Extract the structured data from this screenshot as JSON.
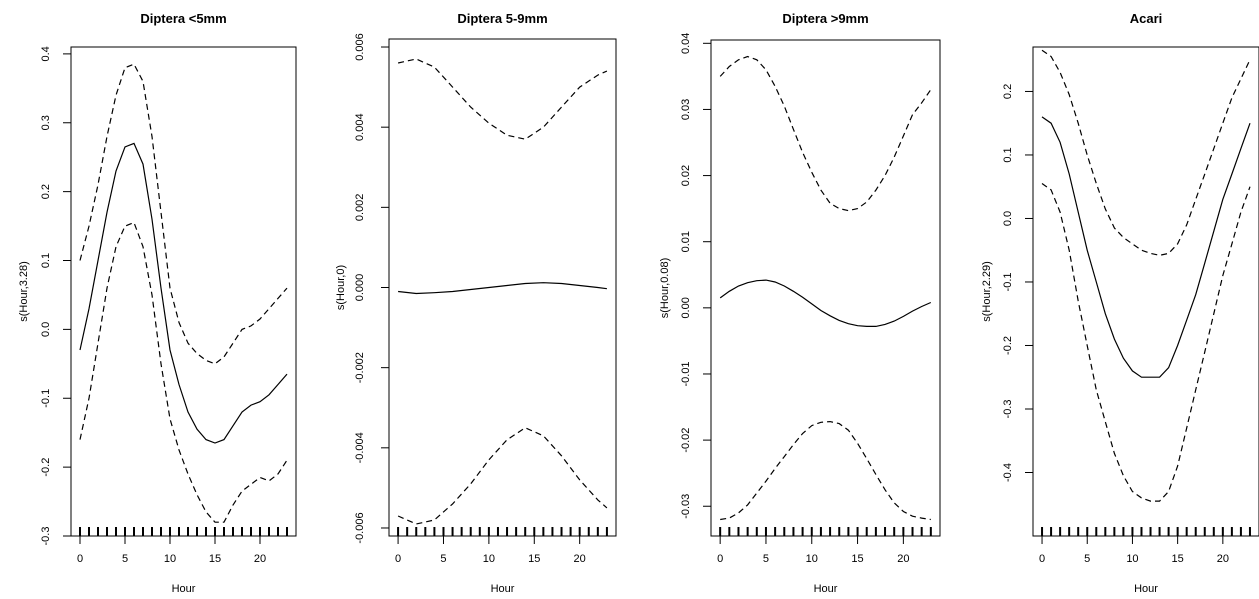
{
  "chart_data": [
    {
      "type": "line",
      "title": "Diptera <5mm",
      "xlabel": "Hour",
      "ylabel": "s(Hour,3.28)",
      "xlim": [
        -1,
        24
      ],
      "ylim": [
        -0.3,
        0.41
      ],
      "xticks": [
        0,
        5,
        10,
        15,
        20
      ],
      "yticks": [
        -0.3,
        -0.2,
        -0.1,
        0.0,
        0.1,
        0.2,
        0.3,
        0.4
      ],
      "ytick_labels": [
        "-0.3",
        "-0.2",
        "-0.1",
        "0.0",
        "0.1",
        "0.2",
        "0.3",
        "0.4"
      ],
      "rug": [
        0,
        1,
        2,
        3,
        4,
        5,
        6,
        7,
        8,
        9,
        10,
        11,
        12,
        13,
        14,
        15,
        16,
        17,
        18,
        19,
        20,
        21,
        22,
        23
      ],
      "x": [
        0,
        1,
        2,
        3,
        4,
        5,
        6,
        7,
        8,
        9,
        10,
        11,
        12,
        13,
        14,
        15,
        16,
        17,
        18,
        19,
        20,
        21,
        22,
        23
      ],
      "series": [
        {
          "style": "solid",
          "values": [
            -0.03,
            0.03,
            0.1,
            0.17,
            0.23,
            0.265,
            0.27,
            0.24,
            0.16,
            0.06,
            -0.03,
            -0.08,
            -0.12,
            -0.145,
            -0.16,
            -0.165,
            -0.16,
            -0.14,
            -0.12,
            -0.11,
            -0.105,
            -0.095,
            -0.08,
            -0.065
          ]
        },
        {
          "style": "dashed",
          "values": [
            0.1,
            0.15,
            0.21,
            0.28,
            0.34,
            0.38,
            0.385,
            0.36,
            0.28,
            0.17,
            0.06,
            0.01,
            -0.02,
            -0.035,
            -0.045,
            -0.05,
            -0.04,
            -0.02,
            0.0,
            0.005,
            0.015,
            0.03,
            0.045,
            0.06
          ]
        },
        {
          "style": "dashed",
          "values": [
            -0.16,
            -0.1,
            -0.02,
            0.06,
            0.12,
            0.15,
            0.155,
            0.12,
            0.05,
            -0.05,
            -0.13,
            -0.175,
            -0.21,
            -0.24,
            -0.265,
            -0.28,
            -0.28,
            -0.255,
            -0.235,
            -0.225,
            -0.215,
            -0.22,
            -0.21,
            -0.19
          ]
        }
      ]
    },
    {
      "type": "line",
      "title": "Diptera 5-9mm",
      "xlabel": "Hour",
      "ylabel": "s(Hour,0)",
      "xlim": [
        -1,
        24
      ],
      "ylim": [
        -0.0062,
        0.0062
      ],
      "xticks": [
        0,
        5,
        10,
        15,
        20
      ],
      "yticks": [
        -0.006,
        -0.004,
        -0.002,
        0.0,
        0.002,
        0.004,
        0.006
      ],
      "ytick_labels": [
        "-0.006",
        "-0.004",
        "-0.002",
        "0.000",
        "0.002",
        "0.004",
        "0.006"
      ],
      "rug": [
        0,
        1,
        2,
        3,
        4,
        5,
        6,
        7,
        8,
        9,
        10,
        11,
        12,
        13,
        14,
        15,
        16,
        17,
        18,
        19,
        20,
        21,
        22,
        23
      ],
      "x": [
        0,
        2,
        4,
        6,
        8,
        10,
        12,
        14,
        16,
        18,
        20,
        22,
        23
      ],
      "series": [
        {
          "style": "solid",
          "values": [
            -0.0001,
            -0.00015,
            -0.00013,
            -0.0001,
            -5e-05,
            0.0,
            5e-05,
            0.0001,
            0.00012,
            0.0001,
            5e-05,
            0.0,
            -3e-05
          ]
        },
        {
          "style": "dashed",
          "values": [
            0.0056,
            0.0057,
            0.0055,
            0.005,
            0.0045,
            0.0041,
            0.0038,
            0.0037,
            0.004,
            0.0045,
            0.005,
            0.0053,
            0.0054
          ]
        },
        {
          "style": "dashed",
          "values": [
            -0.0057,
            -0.0059,
            -0.0058,
            -0.0054,
            -0.0049,
            -0.0043,
            -0.0038,
            -0.0035,
            -0.0037,
            -0.0042,
            -0.0048,
            -0.0053,
            -0.0055
          ]
        }
      ]
    },
    {
      "type": "line",
      "title": "Diptera >9mm",
      "xlabel": "Hour",
      "ylabel": "s(Hour,0.08)",
      "xlim": [
        -1,
        24
      ],
      "ylim": [
        -0.0345,
        0.0405
      ],
      "xticks": [
        0,
        5,
        10,
        15,
        20
      ],
      "yticks": [
        -0.03,
        -0.02,
        -0.01,
        0.0,
        0.01,
        0.02,
        0.03,
        0.04
      ],
      "ytick_labels": [
        "-0.03",
        "-0.02",
        "-0.01",
        "0.00",
        "0.01",
        "0.02",
        "0.03",
        "0.04"
      ],
      "rug": [
        0,
        1,
        2,
        3,
        4,
        5,
        6,
        7,
        8,
        9,
        10,
        11,
        12,
        13,
        14,
        15,
        16,
        17,
        18,
        19,
        20,
        21,
        22,
        23
      ],
      "x": [
        0,
        1,
        2,
        3,
        4,
        5,
        6,
        7,
        8,
        9,
        10,
        11,
        12,
        13,
        14,
        15,
        16,
        17,
        18,
        19,
        20,
        21,
        22,
        23
      ],
      "series": [
        {
          "style": "solid",
          "values": [
            0.0015,
            0.0025,
            0.0033,
            0.0038,
            0.0041,
            0.0042,
            0.0039,
            0.0033,
            0.0025,
            0.0016,
            0.0006,
            -0.0004,
            -0.0012,
            -0.0019,
            -0.0024,
            -0.0027,
            -0.0028,
            -0.0028,
            -0.0025,
            -0.002,
            -0.0013,
            -0.0005,
            0.0002,
            0.0008
          ]
        },
        {
          "style": "dashed",
          "values": [
            0.035,
            0.0365,
            0.0375,
            0.038,
            0.0375,
            0.036,
            0.0335,
            0.0305,
            0.027,
            0.0235,
            0.0205,
            0.0178,
            0.0158,
            0.015,
            0.0147,
            0.015,
            0.016,
            0.0178,
            0.02,
            0.0228,
            0.026,
            0.0292,
            0.031,
            0.033
          ]
        },
        {
          "style": "dashed",
          "values": [
            -0.032,
            -0.0318,
            -0.031,
            -0.0298,
            -0.028,
            -0.0262,
            -0.0243,
            -0.0225,
            -0.0207,
            -0.019,
            -0.0178,
            -0.0173,
            -0.0172,
            -0.0175,
            -0.0185,
            -0.0205,
            -0.0228,
            -0.0252,
            -0.0275,
            -0.0295,
            -0.0308,
            -0.0315,
            -0.0318,
            -0.032
          ]
        }
      ]
    },
    {
      "type": "line",
      "title": "Acari",
      "xlabel": "Hour",
      "ylabel": "s(Hour,2.29)",
      "xlim": [
        -1,
        24
      ],
      "ylim": [
        -0.5,
        0.27
      ],
      "xticks": [
        0,
        5,
        10,
        15,
        20
      ],
      "yticks": [
        -0.4,
        -0.3,
        -0.2,
        -0.1,
        0.0,
        0.1,
        0.2
      ],
      "ytick_labels": [
        "-0.4",
        "-0.3",
        "-0.2",
        "-0.1",
        "0.0",
        "0.1",
        "0.2"
      ],
      "rug": [
        0,
        1,
        2,
        3,
        4,
        5,
        6,
        7,
        8,
        9,
        10,
        11,
        12,
        13,
        14,
        15,
        16,
        17,
        18,
        19,
        20,
        21,
        22,
        23
      ],
      "x": [
        0,
        1,
        2,
        3,
        4,
        5,
        6,
        7,
        8,
        9,
        10,
        11,
        12,
        13,
        14,
        15,
        16,
        17,
        18,
        19,
        20,
        21,
        22,
        23
      ],
      "series": [
        {
          "style": "solid",
          "values": [
            0.16,
            0.15,
            0.12,
            0.07,
            0.01,
            -0.05,
            -0.1,
            -0.15,
            -0.19,
            -0.22,
            -0.24,
            -0.25,
            -0.25,
            -0.25,
            -0.235,
            -0.2,
            -0.16,
            -0.12,
            -0.07,
            -0.02,
            0.03,
            0.07,
            0.11,
            0.15
          ]
        },
        {
          "style": "dashed",
          "values": [
            0.265,
            0.255,
            0.23,
            0.195,
            0.15,
            0.1,
            0.055,
            0.015,
            -0.015,
            -0.03,
            -0.04,
            -0.05,
            -0.055,
            -0.058,
            -0.055,
            -0.04,
            -0.01,
            0.03,
            0.07,
            0.11,
            0.15,
            0.19,
            0.22,
            0.25
          ]
        },
        {
          "style": "dashed",
          "values": [
            0.055,
            0.045,
            0.01,
            -0.05,
            -0.13,
            -0.2,
            -0.27,
            -0.32,
            -0.37,
            -0.405,
            -0.43,
            -0.44,
            -0.445,
            -0.445,
            -0.43,
            -0.39,
            -0.33,
            -0.27,
            -0.21,
            -0.15,
            -0.09,
            -0.04,
            0.01,
            0.05
          ]
        }
      ]
    }
  ]
}
